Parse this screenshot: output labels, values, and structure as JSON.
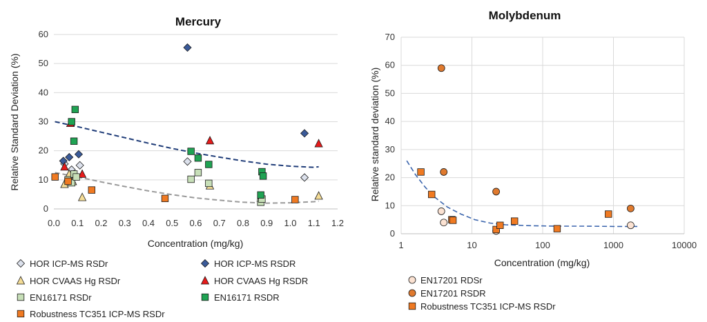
{
  "colors": {
    "hor_icpms_rsdr": "#dce1ec",
    "hor_icpms_rsdR": "#3a5a99",
    "hor_cvaas_rsdr": "#f4dc96",
    "hor_cvaas_rsdR": "#e61b1b",
    "en16171_rsdr": "#c7dfb8",
    "en16171_rsdR": "#1fa353",
    "robust_tc351": "#f07a22",
    "en17201_rdsr": "#fbe2d2",
    "en17201_rsdR": "#e07a2e",
    "trend_blue": "#1f3c78",
    "trend_gray": "#999999",
    "trend_moly": "#3b65ad",
    "grid": "#d9d9d9"
  },
  "chart_data": [
    {
      "type": "scatter",
      "title": "Mercury",
      "xlabel": "Concentration (mg/kg)",
      "ylabel": "Relative Standard Deviation (%)",
      "xlim": [
        0,
        1.2
      ],
      "ylim": [
        0,
        60
      ],
      "xticks": [
        "0.0",
        "0.1",
        "0.2",
        "0.3",
        "0.4",
        "0.5",
        "0.6",
        "0.7",
        "0.8",
        "0.9",
        "1.0",
        "1.1",
        "1.2"
      ],
      "yticks": [
        "0",
        "10",
        "20",
        "30",
        "40",
        "50",
        "60"
      ],
      "grid": "horizontal",
      "legend_position": "bottom",
      "series": [
        {
          "name": "HOR ICP-MS RSDr",
          "marker": "diamond",
          "color_key": "hor_icpms_rsdr",
          "x": [
            0.045,
            0.075,
            0.085,
            0.11,
            0.565,
            0.875,
            1.06
          ],
          "y": [
            15.5,
            13.5,
            12.0,
            15.0,
            16.3,
            2.6,
            10.8
          ]
        },
        {
          "name": "HOR ICP-MS RSDR",
          "marker": "diamond",
          "color_key": "hor_icpms_rsdR",
          "x": [
            0.04,
            0.065,
            0.105,
            0.565,
            1.06
          ],
          "y": [
            16.5,
            17.8,
            18.8,
            55.5,
            26.0
          ]
        },
        {
          "name": "HOR CVAAS Hg RSDr",
          "marker": "triangle",
          "color_key": "hor_cvaas_rsdr",
          "x": [
            0.045,
            0.065,
            0.08,
            0.12,
            0.66,
            1.12
          ],
          "y": [
            8.5,
            12.0,
            9.5,
            4.0,
            8.0,
            4.5
          ]
        },
        {
          "name": "HOR CVAAS Hg RSDR",
          "marker": "triangle",
          "color_key": "hor_cvaas_rsdR",
          "x": [
            0.045,
            0.07,
            0.12,
            0.66,
            1.12
          ],
          "y": [
            14.5,
            29.5,
            12.0,
            23.5,
            22.5
          ]
        },
        {
          "name": "EN16171 RSDr",
          "marker": "square",
          "color_key": "en16171_rsdr",
          "x": [
            0.06,
            0.075,
            0.085,
            0.095,
            0.58,
            0.61,
            0.655,
            0.875,
            0.88
          ],
          "y": [
            10.0,
            9.0,
            12.0,
            11.0,
            10.2,
            12.5,
            8.8,
            2.3,
            3.4
          ]
        },
        {
          "name": "EN16171 RSDR",
          "marker": "square",
          "color_key": "en16171_rsdR",
          "x": [
            0.075,
            0.085,
            0.09,
            0.58,
            0.61,
            0.655,
            0.875,
            0.88,
            0.885
          ],
          "y": [
            30.0,
            23.3,
            34.2,
            19.8,
            17.5,
            15.3,
            4.8,
            12.8,
            11.3
          ]
        },
        {
          "name": "Robustness TC351 ICP-MS RSDr",
          "marker": "square",
          "color_key": "robust_tc351",
          "x": [
            0.005,
            0.06,
            0.16,
            0.47,
            1.02
          ],
          "y": [
            11.0,
            9.5,
            6.5,
            3.6,
            3.2
          ]
        }
      ],
      "trendlines": [
        {
          "color_key": "trend_blue",
          "x": [
            0.005,
            0.1,
            0.2,
            0.3,
            0.4,
            0.5,
            0.6,
            0.7,
            0.8,
            0.9,
            1.0,
            1.1,
            1.12
          ],
          "y": [
            30.0,
            28.3,
            26.4,
            24.5,
            22.6,
            20.8,
            19.2,
            17.8,
            16.5,
            15.4,
            14.7,
            14.3,
            14.5
          ]
        },
        {
          "color_key": "trend_gray",
          "x": [
            0.005,
            0.1,
            0.2,
            0.3,
            0.4,
            0.5,
            0.6,
            0.7,
            0.8,
            0.9,
            1.0,
            1.1,
            1.12
          ],
          "y": [
            12.5,
            11.0,
            9.3,
            7.7,
            6.2,
            4.9,
            3.8,
            3.0,
            2.3,
            2.0,
            2.1,
            2.5,
            2.7
          ]
        }
      ]
    },
    {
      "type": "scatter",
      "title": "Molybdenum",
      "xlabel": "Concentration (mg/kg)",
      "ylabel": "Relative standard deviation (%)",
      "xscale": "log",
      "xlim": [
        1,
        10000
      ],
      "ylim": [
        0,
        70
      ],
      "xticks": [
        "1",
        "10",
        "100",
        "1000",
        "10000"
      ],
      "yticks": [
        "0",
        "10",
        "20",
        "30",
        "40",
        "50",
        "60",
        "70"
      ],
      "grid": "both",
      "legend_position": "bottom",
      "series": [
        {
          "name": "EN17201 RDSr",
          "marker": "circle",
          "color_key": "en17201_rdsr",
          "x": [
            3.7,
            4.0,
            22.0,
            1750
          ],
          "y": [
            8.0,
            4.0,
            1.0,
            3.0
          ]
        },
        {
          "name": "EN17201 RSDR",
          "marker": "circle",
          "color_key": "en17201_rsdR",
          "x": [
            3.7,
            4.0,
            22.0,
            1750
          ],
          "y": [
            59.0,
            22.0,
            15.0,
            9.0
          ]
        },
        {
          "name": "Robustness TC351 ICP-MS RSDr",
          "marker": "square",
          "color_key": "robust_tc351",
          "x": [
            1.9,
            2.7,
            5.2,
            5.4,
            22.0,
            25.0,
            40.0,
            160.0,
            850.0
          ],
          "y": [
            22.0,
            14.0,
            5.0,
            4.8,
            1.5,
            3.0,
            4.5,
            1.8,
            7.0
          ]
        }
      ],
      "trendlines": [
        {
          "color_key": "trend_moly",
          "x": [
            1.2,
            1.6,
            2.2,
            3.0,
            4.5,
            7.0,
            11.0,
            18.0,
            30.0,
            60.0,
            150.0,
            400.0,
            1000.0,
            2300.0
          ],
          "y": [
            26.0,
            21.0,
            16.5,
            13.0,
            9.5,
            7.0,
            5.0,
            3.8,
            3.2,
            2.9,
            2.7,
            2.7,
            2.6,
            2.6
          ]
        }
      ]
    }
  ]
}
